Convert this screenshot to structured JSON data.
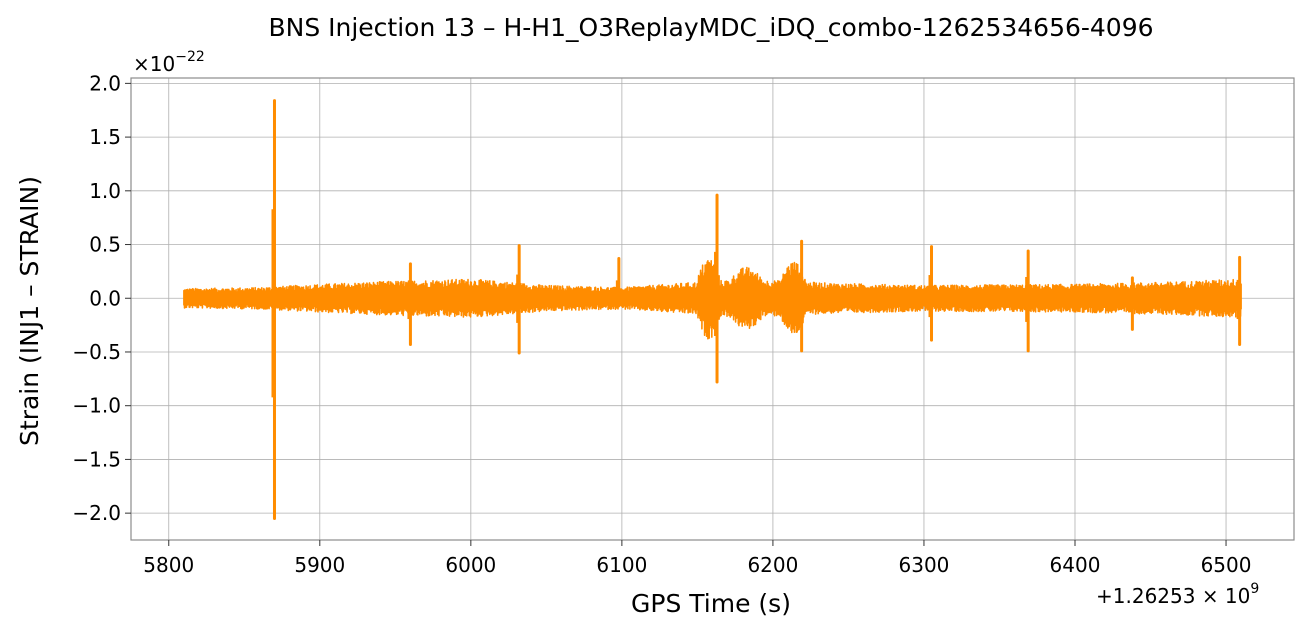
{
  "chart_data": {
    "type": "line",
    "title": "BNS Injection 13 – H-H1_O3ReplayMDC_iDQ_combo-1262534656-4096",
    "xlabel": "GPS Time (s)",
    "ylabel": "Strain (INJ1 – STRAIN)",
    "x_offset_label": "+1.26253 × 10",
    "x_offset_exponent": "9",
    "y_scale_label": "×10",
    "y_scale_exponent": "−22",
    "xlim": [
      5775,
      6545
    ],
    "ylim": [
      -2.25,
      2.05
    ],
    "grid": true,
    "xticks": [
      5800,
      5900,
      6000,
      6100,
      6200,
      6300,
      6400,
      6500
    ],
    "xtick_labels": [
      "5800",
      "5900",
      "6000",
      "6100",
      "6200",
      "6300",
      "6400",
      "6500"
    ],
    "yticks": [
      2.0,
      1.5,
      1.0,
      0.5,
      0.0,
      -0.5,
      -1.0,
      -1.5,
      -2.0
    ],
    "ytick_labels": [
      "2.0",
      "1.5",
      "1.0",
      "0.5",
      "0.0",
      "−0.5",
      "−1.0",
      "−1.5",
      "−2.0"
    ],
    "series": [
      {
        "color": "#ff8c00",
        "data_range": [
          5810,
          6510
        ],
        "baseline_envelope": [
          [
            5810,
            0.09
          ],
          [
            5860,
            0.1
          ],
          [
            5900,
            0.13
          ],
          [
            5950,
            0.16
          ],
          [
            6000,
            0.18
          ],
          [
            6050,
            0.12
          ],
          [
            6100,
            0.1
          ],
          [
            6140,
            0.14
          ],
          [
            6180,
            0.18
          ],
          [
            6240,
            0.14
          ],
          [
            6300,
            0.12
          ],
          [
            6400,
            0.13
          ],
          [
            6460,
            0.15
          ],
          [
            6510,
            0.18
          ]
        ],
        "spikes": [
          {
            "x": 5870,
            "ymax": 1.84,
            "ymin": -2.05
          },
          {
            "x": 5960,
            "ymax": 0.32,
            "ymin": -0.43
          },
          {
            "x": 6032,
            "ymax": 0.49,
            "ymin": -0.51
          },
          {
            "x": 6098,
            "ymax": 0.37,
            "ymin": -0.06
          },
          {
            "x": 6163,
            "ymax": 0.96,
            "ymin": -0.78
          },
          {
            "x": 6219,
            "ymax": 0.53,
            "ymin": -0.49
          },
          {
            "x": 6305,
            "ymax": 0.48,
            "ymin": -0.39
          },
          {
            "x": 6369,
            "ymax": 0.44,
            "ymin": -0.49
          },
          {
            "x": 6438,
            "ymax": 0.19,
            "ymin": -0.29
          },
          {
            "x": 6509,
            "ymax": 0.38,
            "ymin": -0.43
          }
        ],
        "bursts": [
          {
            "x0": 6150,
            "x1": 6165,
            "amp": 0.38
          },
          {
            "x0": 6170,
            "x1": 6195,
            "amp": 0.29
          },
          {
            "x0": 6205,
            "x1": 6222,
            "amp": 0.35
          }
        ]
      }
    ]
  }
}
